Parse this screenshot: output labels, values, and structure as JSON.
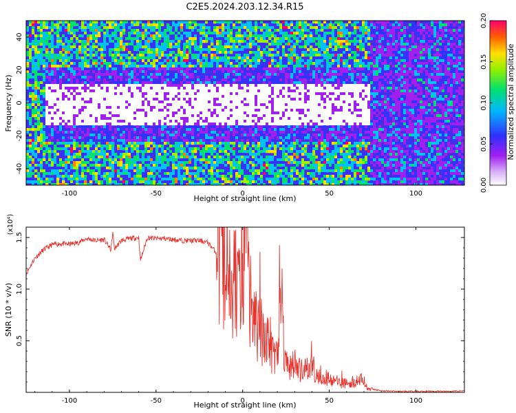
{
  "title": "C2E5.2024.203.12.34.R15",
  "chart_data": [
    {
      "type": "heatmap",
      "xlabel": "Height of straight line (km)",
      "ylabel": "Frequency (Hz)",
      "xlim": [
        -125,
        128
      ],
      "ylim": [
        -50,
        50
      ],
      "xticks": [
        -100,
        -50,
        0,
        50,
        100
      ],
      "yticks": [
        -40,
        -20,
        0,
        20,
        40
      ],
      "colorbar": {
        "label": "Normalized spectral amplitude",
        "range": [
          0.0,
          0.2
        ],
        "ticks": [
          "0.00",
          "0.05",
          "0.10",
          "0.15",
          "0.20"
        ],
        "colors": [
          "#ffffff",
          "#a020f0",
          "#3333ff",
          "#00c0ff",
          "#00e070",
          "#a0f000",
          "#ffe000",
          "#ff8000",
          "#ff0060"
        ]
      },
      "description_values": {
        "bright_band_freq_range_hz": [
          -12,
          12
        ],
        "bright_band_height_range_km": [
          -115,
          72
        ]
      }
    },
    {
      "type": "line",
      "xlabel": "Height of straight line (km)",
      "ylabel": "SNR (10 * v/v)",
      "y_exponent_label": "(x10⁴)",
      "xlim": [
        -125,
        128
      ],
      "ylim": [
        0,
        16000
      ],
      "xticks": [
        -100,
        -50,
        0,
        50,
        100
      ],
      "yticks": [
        0.5,
        1.0,
        1.5
      ],
      "ytick_labels": [
        "0.5",
        "1.0",
        "1.5"
      ],
      "color": "#e8312a",
      "series": [
        {
          "x": [
            -125,
            -120,
            -115,
            -110,
            -105,
            -100,
            -95,
            -90,
            -85,
            -80,
            -76,
            -75,
            -74,
            -70,
            -65,
            -60,
            -59,
            -55,
            -50,
            -45,
            -40,
            -35,
            -30,
            -25,
            -20,
            -15,
            -10,
            -5,
            0,
            1,
            5,
            10,
            15,
            20,
            22,
            25,
            30,
            35,
            40,
            45,
            50,
            55,
            60,
            65,
            70,
            72,
            75,
            80,
            90,
            100,
            110,
            120,
            128
          ],
          "y": [
            11500,
            13000,
            13800,
            14300,
            14400,
            14350,
            14500,
            14900,
            14700,
            14800,
            13800,
            15500,
            13900,
            14700,
            14900,
            15000,
            12800,
            15000,
            14900,
            14900,
            14800,
            14700,
            14700,
            14700,
            14500,
            13500,
            12500,
            11000,
            9000,
            14200,
            7500,
            6000,
            5000,
            3500,
            8500,
            2800,
            2500,
            1900,
            2500,
            1500,
            1300,
            1000,
            900,
            1100,
            1200,
            300,
            300,
            150,
            100,
            100,
            100,
            100,
            150
          ]
        }
      ]
    }
  ]
}
